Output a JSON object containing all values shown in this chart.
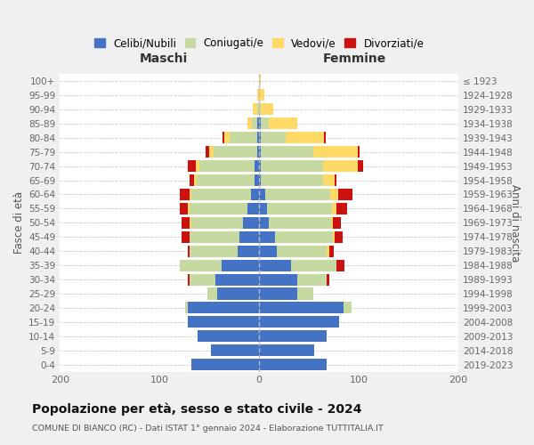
{
  "age_groups": [
    "0-4",
    "5-9",
    "10-14",
    "15-19",
    "20-24",
    "25-29",
    "30-34",
    "35-39",
    "40-44",
    "45-49",
    "50-54",
    "55-59",
    "60-64",
    "65-69",
    "70-74",
    "75-79",
    "80-84",
    "85-89",
    "90-94",
    "95-99",
    "100+"
  ],
  "birth_years": [
    "2019-2023",
    "2014-2018",
    "2009-2013",
    "2004-2008",
    "1999-2003",
    "1994-1998",
    "1989-1993",
    "1984-1988",
    "1979-1983",
    "1974-1978",
    "1969-1973",
    "1964-1968",
    "1959-1963",
    "1954-1958",
    "1949-1953",
    "1944-1948",
    "1939-1943",
    "1934-1938",
    "1929-1933",
    "1924-1928",
    "≤ 1923"
  ],
  "colors": {
    "celibi": "#4472c4",
    "coniugati": "#c5d9a0",
    "vedovi": "#ffd966",
    "divorziati": "#cc1111"
  },
  "male": {
    "celibi": [
      68,
      48,
      62,
      72,
      72,
      42,
      44,
      38,
      22,
      20,
      16,
      12,
      8,
      5,
      5,
      2,
      2,
      2,
      0,
      0,
      0
    ],
    "coniugati": [
      0,
      0,
      0,
      0,
      2,
      10,
      26,
      42,
      48,
      50,
      52,
      58,
      60,
      58,
      55,
      44,
      28,
      5,
      2,
      0,
      0
    ],
    "vedovi": [
      0,
      0,
      0,
      0,
      0,
      0,
      0,
      0,
      0,
      0,
      2,
      2,
      2,
      2,
      4,
      4,
      5,
      5,
      4,
      2,
      0
    ],
    "divorziati": [
      0,
      0,
      0,
      0,
      0,
      0,
      2,
      0,
      2,
      8,
      8,
      8,
      10,
      5,
      8,
      4,
      2,
      0,
      0,
      0,
      0
    ]
  },
  "female": {
    "nubili": [
      68,
      55,
      68,
      80,
      85,
      38,
      38,
      32,
      18,
      16,
      10,
      8,
      6,
      2,
      2,
      2,
      2,
      2,
      0,
      0,
      0
    ],
    "coniugati": [
      0,
      0,
      0,
      0,
      8,
      16,
      30,
      46,
      50,
      58,
      62,
      65,
      65,
      62,
      62,
      52,
      25,
      8,
      2,
      0,
      0
    ],
    "vedovi": [
      0,
      0,
      0,
      0,
      0,
      0,
      0,
      0,
      2,
      2,
      2,
      5,
      8,
      12,
      35,
      45,
      38,
      28,
      12,
      5,
      2
    ],
    "divorziati": [
      0,
      0,
      0,
      0,
      0,
      0,
      2,
      8,
      5,
      8,
      8,
      10,
      15,
      2,
      5,
      2,
      2,
      0,
      0,
      0,
      0
    ]
  },
  "xlim": [
    -200,
    200
  ],
  "title": "Popolazione per età, sesso e stato civile - 2024",
  "subtitle": "COMUNE DI BIANCO (RC) - Dati ISTAT 1° gennaio 2024 - Elaborazione TUTTITALIA.IT",
  "xlabel_left": "Maschi",
  "xlabel_right": "Femmine",
  "ylabel_left": "Fasce di età",
  "ylabel_right": "Anni di nascita",
  "bg_color": "#f0f0f0",
  "plot_bg": "#ffffff",
  "legend_labels": [
    "Celibi/Nubili",
    "Coniugati/e",
    "Vedovi/e",
    "Divorziati/e"
  ]
}
